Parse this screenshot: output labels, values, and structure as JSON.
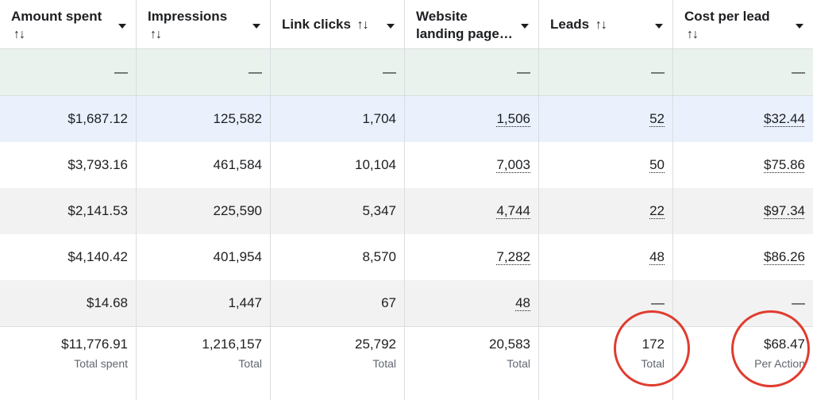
{
  "headers": [
    {
      "title": "Amount spent",
      "sort": "↑↓"
    },
    {
      "title": "Impressions",
      "sort": "↑↓"
    },
    {
      "title": "Link clicks",
      "sort": "↑↓"
    },
    {
      "title": "Website landing page…",
      "sort": ""
    },
    {
      "title": "Leads",
      "sort": "↑↓"
    },
    {
      "title": "Cost per lead",
      "sort": "↑↓"
    }
  ],
  "summary_row": [
    "—",
    "—",
    "—",
    "—",
    "—",
    "—"
  ],
  "rows": [
    [
      "$1,687.12",
      "125,582",
      "1,704",
      "1,506",
      "52",
      "$32.44"
    ],
    [
      "$3,793.16",
      "461,584",
      "10,104",
      "7,003",
      "50",
      "$75.86"
    ],
    [
      "$2,141.53",
      "225,590",
      "5,347",
      "4,744",
      "22",
      "$97.34"
    ],
    [
      "$4,140.42",
      "401,954",
      "8,570",
      "7,282",
      "48",
      "$86.26"
    ],
    [
      "$14.68",
      "1,447",
      "67",
      "48",
      "—",
      "—"
    ]
  ],
  "totals": [
    {
      "value": "$11,776.91",
      "label": "Total spent"
    },
    {
      "value": "1,216,157",
      "label": "Total"
    },
    {
      "value": "25,792",
      "label": "Total"
    },
    {
      "value": "20,583",
      "label": "Total"
    },
    {
      "value": "172",
      "label": "Total"
    },
    {
      "value": "$68.47",
      "label": "Per Action"
    }
  ],
  "colors": {
    "highlight_circle": "#e03c2f",
    "summary_row_bg": "#e9f2ec",
    "selected_row_bg": "#eaf1fc"
  }
}
